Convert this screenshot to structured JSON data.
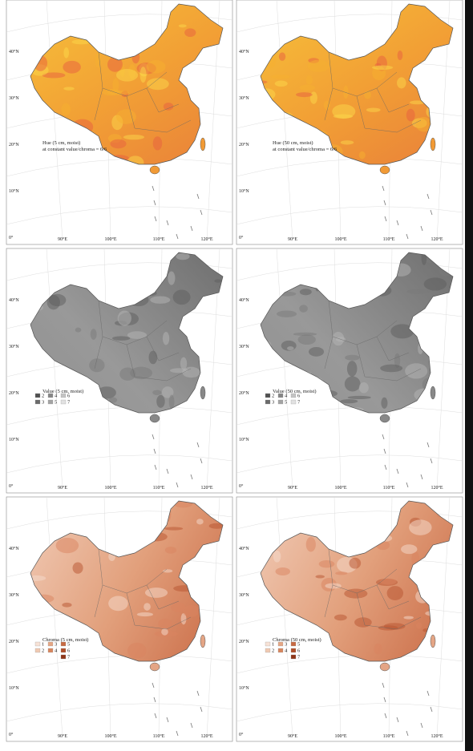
{
  "panels": [
    {
      "title": "Hue (5 cm, moist)",
      "subtitle": "at constant value/chroma = 6/6",
      "scheme": "hue"
    },
    {
      "title": "Hue (50 cm, moist)",
      "subtitle": "at constant value/chroma = 6/6",
      "scheme": "hue"
    },
    {
      "title": "Value (5 cm, moist)",
      "scheme": "value",
      "legend": [
        "2",
        "3",
        "4",
        "5",
        "6",
        "7"
      ]
    },
    {
      "title": "Value (50 cm, moist)",
      "scheme": "value",
      "legend": [
        "2",
        "3",
        "4",
        "5",
        "6",
        "7"
      ]
    },
    {
      "title": "Chroma (5 cm, moist)",
      "scheme": "chroma",
      "legend": [
        "1",
        "2",
        "3",
        "4",
        "5",
        "6",
        "7"
      ]
    },
    {
      "title": "Chroma (50 cm, moist)",
      "scheme": "chroma",
      "legend": [
        "1",
        "2",
        "3",
        "4",
        "5",
        "6",
        "7"
      ]
    }
  ],
  "lon_ticks": [
    "90°E",
    "100°E",
    "110°E",
    "120°E"
  ],
  "lat_ticks": [
    "40°N",
    "30°N",
    "20°N",
    "10°N",
    "0°"
  ]
}
